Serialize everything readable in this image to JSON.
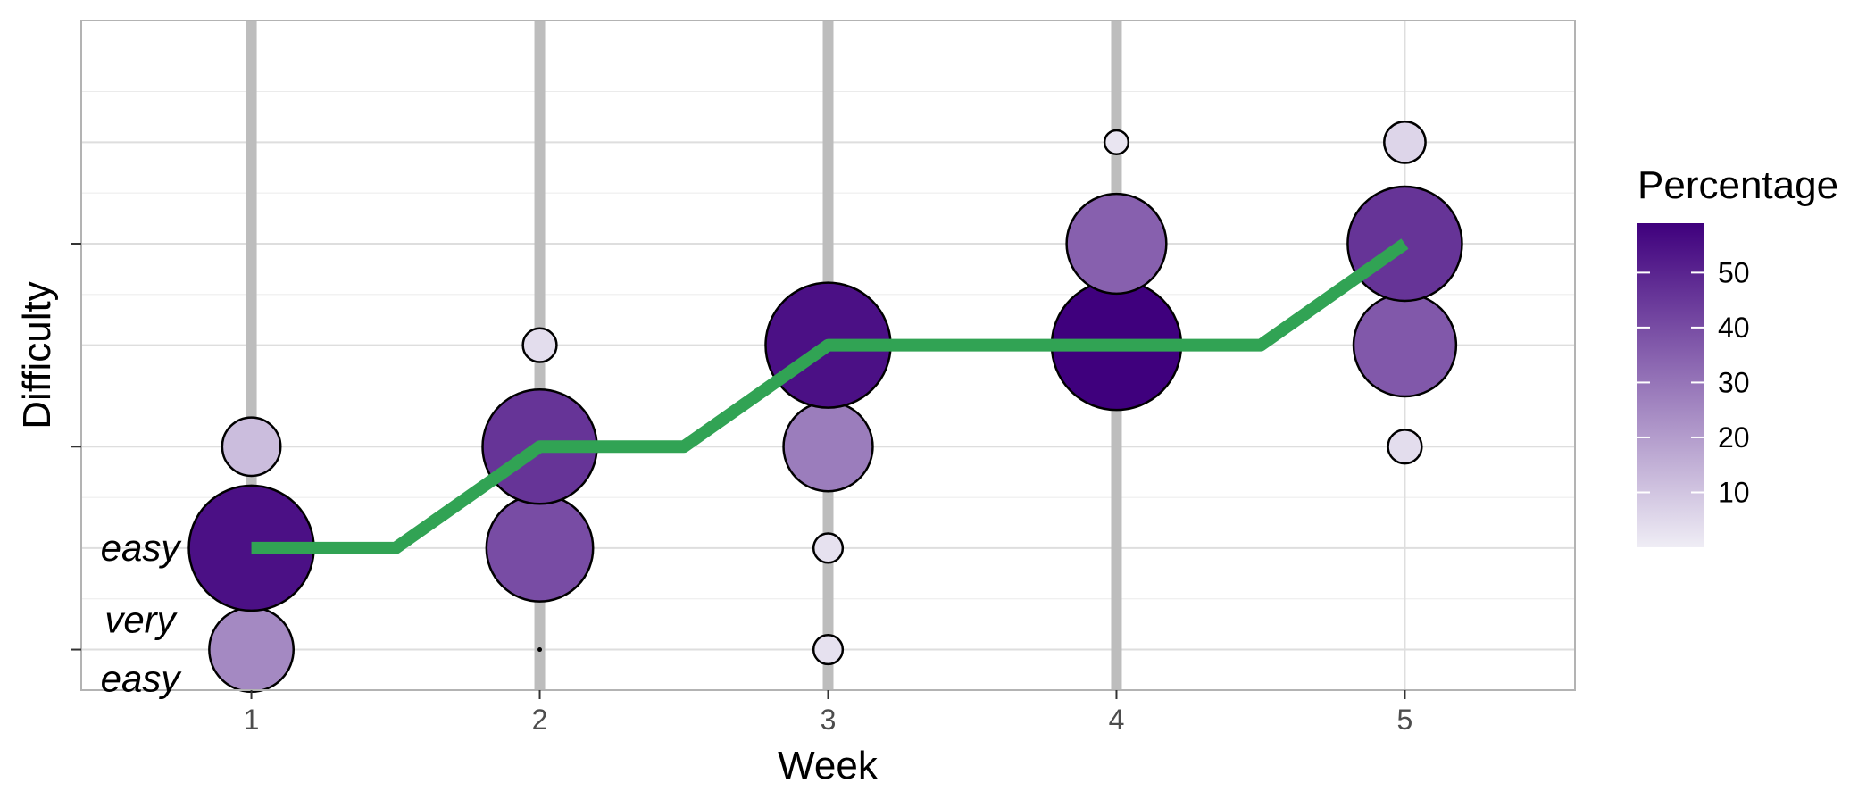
{
  "chart_data": {
    "type": "scatter",
    "title": "",
    "xlabel": "Week",
    "ylabel": "Difficulty",
    "x_ticks": [
      1,
      2,
      3,
      4,
      5
    ],
    "y_levels": [
      1,
      2,
      3,
      4,
      5,
      6
    ],
    "xlim": [
      0.41,
      5.59
    ],
    "ylim": [
      0.6,
      7.2
    ],
    "y_tick_labels": [
      {
        "level": 1,
        "lines": [
          "very",
          "easy"
        ]
      },
      {
        "level": 2,
        "lines": [
          "easy"
        ]
      }
    ],
    "grid": true,
    "bubbles": [
      {
        "week": 1,
        "level": 1,
        "percentage": 25
      },
      {
        "week": 1,
        "level": 2,
        "percentage": 55
      },
      {
        "week": 1,
        "level": 3,
        "percentage": 12
      },
      {
        "week": 2,
        "level": 1,
        "percentage": 0
      },
      {
        "week": 2,
        "level": 2,
        "percentage": 40
      },
      {
        "week": 2,
        "level": 3,
        "percentage": 46
      },
      {
        "week": 2,
        "level": 4,
        "percentage": 4
      },
      {
        "week": 3,
        "level": 1,
        "percentage": 3
      },
      {
        "week": 3,
        "level": 2,
        "percentage": 3
      },
      {
        "week": 3,
        "level": 3,
        "percentage": 28
      },
      {
        "week": 3,
        "level": 4,
        "percentage": 55
      },
      {
        "week": 4,
        "level": 4,
        "percentage": 59
      },
      {
        "week": 4,
        "level": 5,
        "percentage": 35
      },
      {
        "week": 4,
        "level": 6,
        "percentage": 2
      },
      {
        "week": 5,
        "level": 3,
        "percentage": 4
      },
      {
        "week": 5,
        "level": 4,
        "percentage": 37
      },
      {
        "week": 5,
        "level": 5,
        "percentage": 46
      },
      {
        "week": 5,
        "level": 6,
        "percentage": 6
      }
    ],
    "trend_line": [
      {
        "week": 1,
        "level": 2
      },
      {
        "week": 1.5,
        "level": 2
      },
      {
        "week": 2,
        "level": 3
      },
      {
        "week": 2.5,
        "level": 3
      },
      {
        "week": 3,
        "level": 4
      },
      {
        "week": 4.5,
        "level": 4
      },
      {
        "week": 5,
        "level": 5
      }
    ],
    "trend_color": "#31a354",
    "week_bar_color": "#bdbdbd",
    "weeks_with_bars": [
      1,
      2,
      3,
      4
    ],
    "legend": {
      "title": "Percentage",
      "ticks": [
        10,
        20,
        30,
        40,
        50
      ],
      "min": 0,
      "max": 59,
      "color_low": "#efedf5",
      "color_high": "#3f007d",
      "placement": "right"
    }
  }
}
